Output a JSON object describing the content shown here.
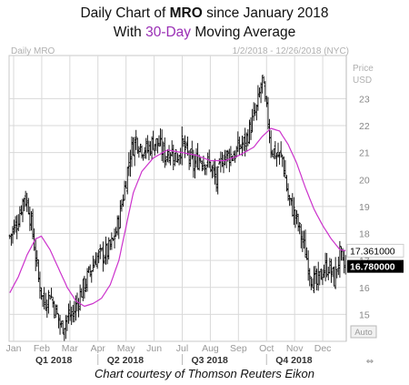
{
  "header": {
    "line1_prefix": "Daily Chart of ",
    "ticker": "MRO",
    "line1_suffix": " since January 2018",
    "line2_prefix": "With ",
    "ma_label": "30-Day",
    "line2_suffix": " Moving Average"
  },
  "panel": {
    "label": "Daily MRO",
    "range": "1/2/2018 - 12/26/2018 (NYC)",
    "axis_title_1": "Price",
    "axis_title_2": "USD",
    "auto_button": "Auto",
    "corner_mark": "⇔"
  },
  "caption": "Chart courtesy of Thomson Reuters Eikon",
  "colors": {
    "price_bars": "#000000",
    "moving_average": "#cc33cc",
    "ma_label": "#9a2fb5",
    "last_price_bg": "#000000",
    "grid": "#d9d9d9"
  },
  "chart_data": {
    "type": "ohlc",
    "ylim": [
      14,
      24.6
    ],
    "y_ticks": [
      15,
      16,
      17,
      18,
      19,
      20,
      21,
      22,
      23
    ],
    "grid": true,
    "months": [
      "Jan",
      "Feb",
      "Mar",
      "Apr",
      "May",
      "Jun",
      "Jul",
      "Aug",
      "Sep",
      "Oct",
      "Nov",
      "Dec"
    ],
    "quarters": [
      "Q1 2018",
      "Q2 2018",
      "Q3 2018",
      "Q4 2018"
    ],
    "markers": [
      {
        "label": "17.361000",
        "value": 17.361,
        "series": "30-Day Moving Average"
      },
      {
        "label": "16.780000",
        "value": 16.78,
        "series": "MRO"
      }
    ],
    "price_anchors": [
      [
        0,
        17.9
      ],
      [
        5,
        18.4
      ],
      [
        10,
        19.4
      ],
      [
        13,
        19.0
      ],
      [
        16,
        18.0
      ],
      [
        20,
        16.3
      ],
      [
        24,
        15.4
      ],
      [
        28,
        15.8
      ],
      [
        32,
        15.1
      ],
      [
        36,
        14.5
      ],
      [
        40,
        14.9
      ],
      [
        44,
        15.0
      ],
      [
        48,
        15.6
      ],
      [
        52,
        16.1
      ],
      [
        56,
        16.6
      ],
      [
        60,
        17.1
      ],
      [
        64,
        17.2
      ],
      [
        68,
        17.3
      ],
      [
        72,
        17.7
      ],
      [
        76,
        18.5
      ],
      [
        80,
        19.7
      ],
      [
        84,
        21.0
      ],
      [
        88,
        21.5
      ],
      [
        92,
        21.2
      ],
      [
        96,
        21.1
      ],
      [
        100,
        21.4
      ],
      [
        104,
        21.3
      ],
      [
        108,
        20.9
      ],
      [
        112,
        21.1
      ],
      [
        116,
        20.8
      ],
      [
        120,
        21.3
      ],
      [
        124,
        20.9
      ],
      [
        128,
        20.5
      ],
      [
        132,
        20.8
      ],
      [
        136,
        20.7
      ],
      [
        140,
        20.5
      ],
      [
        144,
        19.9
      ],
      [
        148,
        20.8
      ],
      [
        152,
        20.9
      ],
      [
        156,
        20.9
      ],
      [
        160,
        21.2
      ],
      [
        164,
        21.4
      ],
      [
        168,
        22.0
      ],
      [
        172,
        22.6
      ],
      [
        176,
        23.7
      ],
      [
        178,
        22.8
      ],
      [
        180,
        22.2
      ],
      [
        182,
        21.2
      ],
      [
        186,
        20.9
      ],
      [
        190,
        20.8
      ],
      [
        194,
        19.3
      ],
      [
        198,
        18.8
      ],
      [
        202,
        18.1
      ],
      [
        206,
        17.3
      ],
      [
        210,
        16.4
      ],
      [
        214,
        16.1
      ],
      [
        218,
        16.6
      ],
      [
        222,
        16.8
      ],
      [
        226,
        16.3
      ],
      [
        230,
        17.2
      ],
      [
        232,
        16.8
      ],
      [
        234,
        16.8
      ]
    ],
    "ma_anchors": [
      [
        0,
        15.8
      ],
      [
        6,
        16.4
      ],
      [
        12,
        17.2
      ],
      [
        18,
        17.8
      ],
      [
        22,
        17.9
      ],
      [
        28,
        17.4
      ],
      [
        34,
        16.7
      ],
      [
        40,
        16.0
      ],
      [
        46,
        15.5
      ],
      [
        52,
        15.3
      ],
      [
        58,
        15.4
      ],
      [
        64,
        15.6
      ],
      [
        70,
        16.1
      ],
      [
        76,
        17.0
      ],
      [
        82,
        18.5
      ],
      [
        86,
        19.5
      ],
      [
        92,
        20.3
      ],
      [
        100,
        20.8
      ],
      [
        110,
        21.1
      ],
      [
        120,
        21.0
      ],
      [
        130,
        20.9
      ],
      [
        140,
        20.7
      ],
      [
        150,
        20.7
      ],
      [
        160,
        20.9
      ],
      [
        170,
        21.2
      ],
      [
        176,
        21.6
      ],
      [
        182,
        21.9
      ],
      [
        188,
        21.8
      ],
      [
        194,
        21.3
      ],
      [
        200,
        20.6
      ],
      [
        206,
        19.7
      ],
      [
        212,
        18.9
      ],
      [
        218,
        18.3
      ],
      [
        224,
        17.8
      ],
      [
        230,
        17.4
      ],
      [
        234,
        17.361
      ]
    ]
  }
}
